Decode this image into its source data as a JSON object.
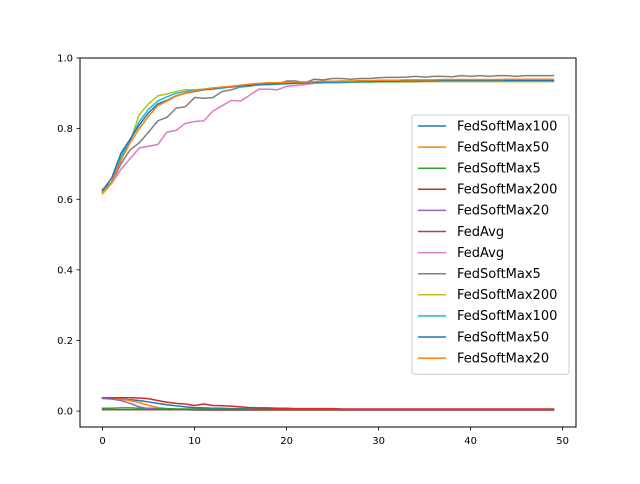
{
  "chart_data": {
    "type": "line",
    "title": "",
    "xlabel": "",
    "ylabel": "",
    "xlim": [
      -2.45,
      51.45
    ],
    "ylim": [
      -0.045,
      1.0
    ],
    "grid": false,
    "legend_placement": "center-right",
    "x_ticks": [
      0,
      10,
      20,
      30,
      40,
      50
    ],
    "x_tick_labels": [
      "0",
      "10",
      "20",
      "30",
      "40",
      "50"
    ],
    "y_ticks": [
      0.0,
      0.2,
      0.4,
      0.6,
      0.8,
      1.0
    ],
    "y_tick_labels": [
      "0.0",
      "0.2",
      "0.4",
      "0.6",
      "0.8",
      "1.0"
    ],
    "x": [
      0,
      1,
      2,
      3,
      4,
      5,
      6,
      7,
      8,
      9,
      10,
      11,
      12,
      13,
      14,
      15,
      16,
      17,
      18,
      19,
      20,
      21,
      22,
      23,
      24,
      25,
      26,
      27,
      28,
      29,
      30,
      31,
      32,
      33,
      34,
      35,
      36,
      37,
      38,
      39,
      40,
      41,
      42,
      43,
      44,
      45,
      46,
      47,
      48,
      49
    ],
    "series": [
      {
        "name": "FedSoftMax100",
        "color": "#1f77b4",
        "values": [
          0.036,
          0.035,
          0.034,
          0.032,
          0.03,
          0.026,
          0.022,
          0.018,
          0.015,
          0.012,
          0.01,
          0.009,
          0.008,
          0.008,
          0.007,
          0.007,
          0.006,
          0.006,
          0.006,
          0.006,
          0.005,
          0.005,
          0.005,
          0.005,
          0.005,
          0.005,
          0.005,
          0.005,
          0.005,
          0.005,
          0.005,
          0.005,
          0.005,
          0.005,
          0.005,
          0.005,
          0.005,
          0.005,
          0.005,
          0.005,
          0.005,
          0.005,
          0.005,
          0.005,
          0.005,
          0.005,
          0.005,
          0.005,
          0.005,
          0.005
        ]
      },
      {
        "name": "FedSoftMax50",
        "color": "#ff7f0e",
        "values": [
          0.037,
          0.036,
          0.034,
          0.03,
          0.024,
          0.016,
          0.01,
          0.007,
          0.006,
          0.005,
          0.005,
          0.005,
          0.005,
          0.004,
          0.004,
          0.004,
          0.004,
          0.004,
          0.004,
          0.004,
          0.004,
          0.004,
          0.004,
          0.004,
          0.004,
          0.004,
          0.004,
          0.004,
          0.004,
          0.004,
          0.004,
          0.004,
          0.004,
          0.004,
          0.004,
          0.004,
          0.004,
          0.004,
          0.004,
          0.004,
          0.004,
          0.004,
          0.004,
          0.004,
          0.004,
          0.004,
          0.004,
          0.004,
          0.004,
          0.004
        ]
      },
      {
        "name": "FedSoftMax5",
        "color": "#2ca02c",
        "values": [
          0.008,
          0.008,
          0.009,
          0.009,
          0.008,
          0.008,
          0.007,
          0.007,
          0.006,
          0.006,
          0.006,
          0.006,
          0.005,
          0.005,
          0.005,
          0.005,
          0.005,
          0.005,
          0.005,
          0.005,
          0.005,
          0.005,
          0.005,
          0.005,
          0.005,
          0.005,
          0.005,
          0.005,
          0.005,
          0.005,
          0.005,
          0.005,
          0.005,
          0.005,
          0.005,
          0.005,
          0.005,
          0.005,
          0.005,
          0.005,
          0.005,
          0.005,
          0.005,
          0.005,
          0.005,
          0.005,
          0.005,
          0.005,
          0.005,
          0.005
        ]
      },
      {
        "name": "FedSoftMax200",
        "color": "#d62728",
        "values": [
          0.038,
          0.038,
          0.038,
          0.038,
          0.037,
          0.035,
          0.03,
          0.025,
          0.022,
          0.02,
          0.016,
          0.02,
          0.016,
          0.015,
          0.014,
          0.012,
          0.01,
          0.009,
          0.009,
          0.008,
          0.008,
          0.007,
          0.007,
          0.007,
          0.007,
          0.007,
          0.006,
          0.006,
          0.006,
          0.006,
          0.006,
          0.006,
          0.006,
          0.006,
          0.006,
          0.006,
          0.006,
          0.006,
          0.006,
          0.006,
          0.006,
          0.006,
          0.006,
          0.006,
          0.006,
          0.006,
          0.006,
          0.006,
          0.006,
          0.006
        ]
      },
      {
        "name": "FedSoftMax20",
        "color": "#9467bd",
        "values": [
          0.036,
          0.034,
          0.03,
          0.022,
          0.012,
          0.007,
          0.005,
          0.004,
          0.004,
          0.004,
          0.004,
          0.003,
          0.003,
          0.003,
          0.003,
          0.003,
          0.003,
          0.003,
          0.003,
          0.003,
          0.003,
          0.003,
          0.003,
          0.003,
          0.003,
          0.003,
          0.003,
          0.003,
          0.003,
          0.003,
          0.003,
          0.003,
          0.003,
          0.003,
          0.003,
          0.003,
          0.003,
          0.003,
          0.003,
          0.003,
          0.003,
          0.003,
          0.003,
          0.003,
          0.003,
          0.003,
          0.003,
          0.003,
          0.003,
          0.003
        ]
      },
      {
        "name": "FedAvg",
        "color": "#8c564b",
        "values": [
          0.004,
          0.004,
          0.004,
          0.004,
          0.004,
          0.004,
          0.004,
          0.004,
          0.004,
          0.004,
          0.003,
          0.003,
          0.003,
          0.003,
          0.003,
          0.003,
          0.003,
          0.003,
          0.003,
          0.003,
          0.003,
          0.003,
          0.003,
          0.003,
          0.003,
          0.003,
          0.003,
          0.003,
          0.003,
          0.003,
          0.003,
          0.003,
          0.003,
          0.003,
          0.003,
          0.003,
          0.003,
          0.003,
          0.003,
          0.003,
          0.003,
          0.003,
          0.003,
          0.003,
          0.003,
          0.003,
          0.003,
          0.003,
          0.003,
          0.003
        ]
      },
      {
        "name": "FedAvg",
        "color": "#e377c2",
        "values": [
          0.625,
          0.645,
          0.685,
          0.715,
          0.745,
          0.75,
          0.755,
          0.79,
          0.795,
          0.815,
          0.82,
          0.822,
          0.85,
          0.865,
          0.88,
          0.878,
          0.895,
          0.912,
          0.912,
          0.91,
          0.92,
          0.922,
          0.925,
          0.928,
          0.93,
          0.93,
          0.93,
          0.932,
          0.932,
          0.932,
          0.933,
          0.933,
          0.934,
          0.934,
          0.934,
          0.935,
          0.935,
          0.935,
          0.935,
          0.935,
          0.935,
          0.936,
          0.936,
          0.936,
          0.936,
          0.936,
          0.936,
          0.936,
          0.936,
          0.936
        ]
      },
      {
        "name": "FedSoftMax5",
        "color": "#7f7f7f",
        "values": [
          0.628,
          0.648,
          0.7,
          0.74,
          0.76,
          0.79,
          0.822,
          0.832,
          0.858,
          0.862,
          0.888,
          0.886,
          0.888,
          0.905,
          0.91,
          0.918,
          0.92,
          0.925,
          0.925,
          0.925,
          0.935,
          0.935,
          0.93,
          0.94,
          0.938,
          0.942,
          0.942,
          0.94,
          0.942,
          0.942,
          0.944,
          0.945,
          0.945,
          0.946,
          0.948,
          0.946,
          0.948,
          0.948,
          0.947,
          0.95,
          0.948,
          0.95,
          0.948,
          0.95,
          0.95,
          0.948,
          0.95,
          0.95,
          0.95,
          0.95
        ]
      },
      {
        "name": "FedSoftMax200",
        "color": "#bcbd22",
        "values": [
          0.615,
          0.645,
          0.72,
          0.765,
          0.84,
          0.87,
          0.893,
          0.898,
          0.905,
          0.91,
          0.91,
          0.912,
          0.915,
          0.916,
          0.918,
          0.92,
          0.922,
          0.924,
          0.925,
          0.926,
          0.927,
          0.928,
          0.928,
          0.929,
          0.93,
          0.93,
          0.93,
          0.931,
          0.931,
          0.931,
          0.932,
          0.932,
          0.932,
          0.932,
          0.932,
          0.933,
          0.933,
          0.933,
          0.933,
          0.933,
          0.933,
          0.933,
          0.933,
          0.933,
          0.933,
          0.933,
          0.933,
          0.933,
          0.933,
          0.933
        ]
      },
      {
        "name": "FedSoftMax100",
        "color": "#17becf",
        "values": [
          0.62,
          0.65,
          0.72,
          0.768,
          0.82,
          0.855,
          0.878,
          0.89,
          0.9,
          0.905,
          0.908,
          0.91,
          0.912,
          0.915,
          0.918,
          0.92,
          0.922,
          0.924,
          0.925,
          0.926,
          0.927,
          0.928,
          0.929,
          0.93,
          0.93,
          0.931,
          0.931,
          0.932,
          0.932,
          0.932,
          0.933,
          0.933,
          0.933,
          0.934,
          0.934,
          0.934,
          0.934,
          0.935,
          0.935,
          0.935,
          0.935,
          0.935,
          0.935,
          0.935,
          0.935,
          0.935,
          0.935,
          0.935,
          0.935,
          0.935
        ]
      },
      {
        "name": "FedSoftMax50",
        "color": "#1f77b4",
        "values": [
          0.625,
          0.66,
          0.73,
          0.77,
          0.81,
          0.845,
          0.87,
          0.88,
          0.893,
          0.9,
          0.905,
          0.91,
          0.913,
          0.916,
          0.919,
          0.921,
          0.923,
          0.925,
          0.926,
          0.927,
          0.928,
          0.929,
          0.93,
          0.931,
          0.932,
          0.932,
          0.933,
          0.933,
          0.934,
          0.934,
          0.935,
          0.935,
          0.935,
          0.936,
          0.936,
          0.936,
          0.936,
          0.937,
          0.937,
          0.937,
          0.937,
          0.937,
          0.937,
          0.937,
          0.937,
          0.937,
          0.937,
          0.937,
          0.937,
          0.937
        ]
      },
      {
        "name": "FedSoftMax20",
        "color": "#ff7f0e",
        "values": [
          0.62,
          0.648,
          0.71,
          0.76,
          0.8,
          0.835,
          0.865,
          0.878,
          0.892,
          0.9,
          0.907,
          0.912,
          0.915,
          0.918,
          0.92,
          0.923,
          0.926,
          0.928,
          0.93,
          0.93,
          0.931,
          0.932,
          0.932,
          0.933,
          0.934,
          0.934,
          0.935,
          0.935,
          0.936,
          0.936,
          0.937,
          0.937,
          0.937,
          0.938,
          0.938,
          0.938,
          0.938,
          0.939,
          0.939,
          0.939,
          0.939,
          0.939,
          0.939,
          0.939,
          0.94,
          0.94,
          0.94,
          0.94,
          0.94,
          0.94
        ]
      }
    ]
  }
}
